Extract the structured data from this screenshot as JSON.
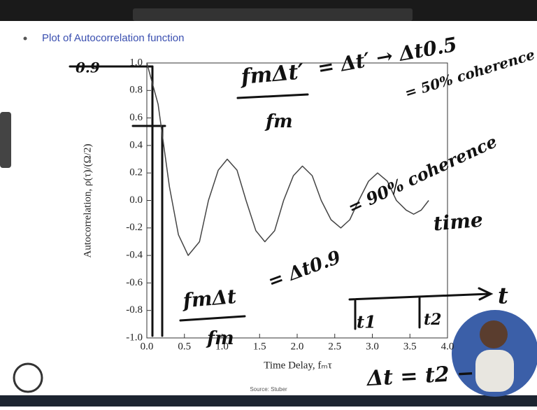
{
  "chart_data": {
    "type": "line",
    "title": "Plot of Autocorrelation function",
    "xlabel": "Time Delay, fₘτ",
    "ylabel": "Autocorrelation, ρ(τ)/(Ω/2)",
    "source": "Source: Stuber",
    "x": [
      0,
      0.15,
      0.3,
      0.42,
      0.55,
      0.7,
      0.82,
      0.95,
      1.07,
      1.2,
      1.32,
      1.45,
      1.57,
      1.7,
      1.82,
      1.95,
      2.07,
      2.2,
      2.32,
      2.45,
      2.58,
      2.7,
      2.82,
      2.95,
      3.07,
      3.2,
      3.32,
      3.45,
      3.55,
      3.65,
      3.75
    ],
    "series": [
      {
        "color": "#444444",
        "values": [
          1.0,
          0.7,
          0.1,
          -0.25,
          -0.4,
          -0.3,
          0.0,
          0.22,
          0.3,
          0.22,
          0.0,
          -0.22,
          -0.3,
          -0.22,
          0.0,
          0.18,
          0.25,
          0.18,
          0.0,
          -0.14,
          -0.2,
          -0.14,
          0.0,
          0.14,
          0.2,
          0.14,
          0.0,
          -0.07,
          -0.1,
          -0.07,
          0.0
        ]
      }
    ],
    "xlim": [
      0,
      4
    ],
    "ylim": [
      -1,
      1
    ],
    "xticks": [
      {
        "value": 0,
        "label": "0.0"
      },
      0.5,
      {
        "value": 1,
        "label": "1.0"
      },
      1.5,
      {
        "value": 2,
        "label": "2.0"
      },
      2.5,
      {
        "value": 3,
        "label": "3.0"
      },
      3.5,
      {
        "value": 4,
        "label": "4.0"
      }
    ],
    "yticks": [
      {
        "value": -1,
        "label": "-1.0"
      },
      -0.8,
      -0.6,
      -0.4,
      -0.2,
      {
        "value": 0,
        "label": "0.0"
      },
      0.2,
      0.4,
      0.6,
      0.8,
      {
        "value": 1,
        "label": "1.0"
      }
    ],
    "annotations": [
      "0.9",
      "fmΔt′",
      "fm",
      "= Δt′ → Δt0.5",
      "= 50% coherence",
      "= 90% coherence",
      "time",
      "fmΔt",
      "fm",
      "= Δt0.9",
      "t",
      "t1",
      "t2",
      "Δt = t2 −"
    ]
  }
}
